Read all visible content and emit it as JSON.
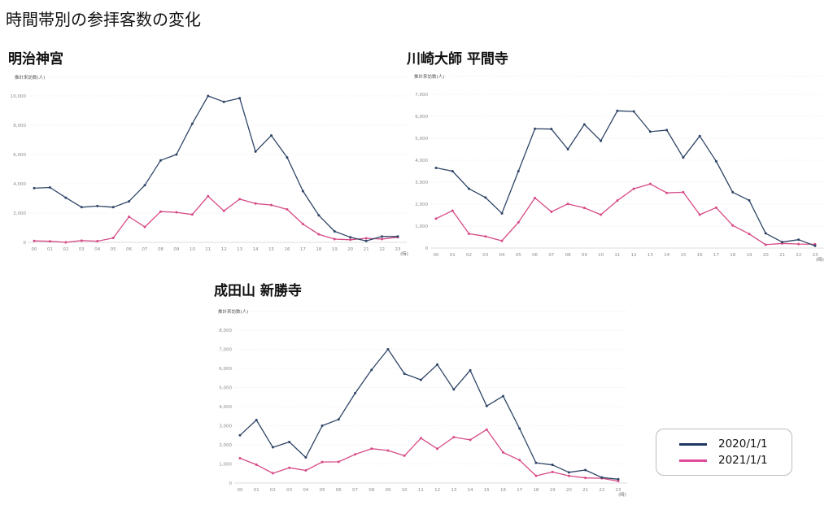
{
  "page": {
    "title": "時間帯別の参拝客数の変化"
  },
  "legend": {
    "items": [
      {
        "label": "2020/1/1",
        "color": "#1f3660"
      },
      {
        "label": "2021/1/1",
        "color": "#e04a9a"
      }
    ]
  },
  "colors": {
    "series_2020": "#2e4566",
    "series_2021": "#d64a86",
    "grid": "#e4e4e4",
    "axis_text": "#8a8a8a"
  },
  "chart_data": [
    {
      "type": "line",
      "title": "明治神宮",
      "ylabel": "推計来訪数(人)",
      "xlabel": "(時)",
      "categories": [
        "00",
        "01",
        "02",
        "03",
        "04",
        "05",
        "06",
        "07",
        "08",
        "09",
        "10",
        "11",
        "12",
        "13",
        "14",
        "15",
        "16",
        "17",
        "18",
        "19",
        "20",
        "21",
        "22",
        "23"
      ],
      "yticks": [
        0,
        2000,
        4000,
        6000,
        8000,
        10000
      ],
      "ytick_labels": [
        "0",
        "2,000",
        "4,000",
        "6,000",
        "8,000",
        "10,000"
      ],
      "ylim": [
        0,
        10000
      ],
      "grid": true,
      "legend_position": "bottom-right (shared)",
      "series": [
        {
          "name": "2020/1/1",
          "values": [
            3700,
            3750,
            3050,
            2400,
            2480,
            2400,
            2800,
            3900,
            5600,
            6000,
            8100,
            10000,
            9600,
            9850,
            6200,
            7300,
            5800,
            3500,
            1850,
            750,
            350,
            100,
            400,
            400
          ]
        },
        {
          "name": "2021/1/1",
          "values": [
            100,
            70,
            0,
            120,
            80,
            300,
            1750,
            1050,
            2100,
            2050,
            1900,
            3150,
            2150,
            2950,
            2650,
            2550,
            2250,
            1250,
            550,
            220,
            180,
            280,
            220,
            350
          ]
        }
      ]
    },
    {
      "type": "line",
      "title": "川崎大師 平間寺",
      "ylabel": "推計来訪数(人)",
      "xlabel": "(時)",
      "categories": [
        "00",
        "01",
        "02",
        "03",
        "04",
        "05",
        "06",
        "07",
        "08",
        "09",
        "10",
        "11",
        "12",
        "13",
        "14",
        "15",
        "16",
        "17",
        "18",
        "19",
        "20",
        "21",
        "22",
        "23"
      ],
      "yticks": [
        0,
        1000,
        2000,
        3000,
        4000,
        5000,
        6000,
        7000
      ],
      "ytick_labels": [
        "0",
        "1,000",
        "2,000",
        "3,000",
        "4,000",
        "5,000",
        "6,000",
        "7,000"
      ],
      "ylim": [
        0,
        7000
      ],
      "grid": true,
      "series": [
        {
          "name": "2020/1/1",
          "values": [
            3650,
            3500,
            2700,
            2300,
            1580,
            3500,
            5430,
            5420,
            4500,
            5630,
            4880,
            6250,
            6220,
            5300,
            5370,
            4120,
            5100,
            3950,
            2540,
            2170,
            670,
            270,
            380,
            100
          ]
        },
        {
          "name": "2021/1/1",
          "values": [
            1340,
            1700,
            650,
            530,
            330,
            1170,
            2280,
            1650,
            2010,
            1830,
            1520,
            2160,
            2700,
            2920,
            2510,
            2540,
            1520,
            1840,
            1030,
            640,
            150,
            210,
            180,
            170
          ]
        }
      ]
    },
    {
      "type": "line",
      "title": "成田山 新勝寺",
      "ylabel": "推計来訪数(人)",
      "xlabel": "(時)",
      "categories": [
        "00",
        "01",
        "02",
        "03",
        "04",
        "05",
        "06",
        "07",
        "08",
        "09",
        "10",
        "11",
        "12",
        "13",
        "14",
        "15",
        "16",
        "17",
        "18",
        "19",
        "20",
        "21",
        "22",
        "23"
      ],
      "yticks": [
        0,
        1000,
        2000,
        3000,
        4000,
        5000,
        6000,
        7000,
        8000
      ],
      "ytick_labels": [
        "0",
        "1,000",
        "2,000",
        "3,000",
        "4,000",
        "5,000",
        "6,000",
        "7,000",
        "8,000"
      ],
      "ylim": [
        0,
        8000
      ],
      "grid": true,
      "series": [
        {
          "name": "2020/1/1",
          "values": [
            2500,
            3300,
            1870,
            2150,
            1340,
            3000,
            3330,
            4700,
            5920,
            7000,
            5720,
            5400,
            6200,
            4900,
            5900,
            4030,
            4550,
            2850,
            1060,
            950,
            560,
            680,
            290,
            200
          ]
        },
        {
          "name": "2021/1/1",
          "values": [
            1300,
            960,
            510,
            800,
            660,
            1100,
            1110,
            1500,
            1800,
            1700,
            1430,
            2350,
            1790,
            2400,
            2260,
            2800,
            1600,
            1200,
            380,
            580,
            380,
            270,
            250,
            100
          ]
        }
      ]
    }
  ]
}
